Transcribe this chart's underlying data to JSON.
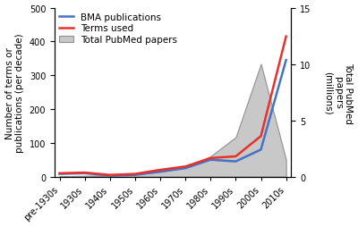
{
  "x_labels": [
    "pre-1930s",
    "1930s",
    "1940s",
    "1950s",
    "1960s",
    "1970s",
    "1980s",
    "1990s",
    "2000s",
    "2010s"
  ],
  "bma_publications": [
    8,
    10,
    3,
    5,
    15,
    25,
    50,
    45,
    80,
    345
  ],
  "terms_used": [
    10,
    12,
    5,
    8,
    20,
    30,
    55,
    60,
    120,
    415
  ],
  "total_pubmed_millions": [
    0.02,
    0.08,
    0.1,
    0.2,
    0.4,
    0.8,
    1.8,
    3.5,
    10.0,
    1.5
  ],
  "left_ylim": [
    0,
    500
  ],
  "right_ylim": [
    0,
    15
  ],
  "left_yticks": [
    0,
    100,
    200,
    300,
    400,
    500
  ],
  "right_yticks": [
    0,
    5,
    10,
    15
  ],
  "ylabel_left": "Number of terms or\npublications (per decade)",
  "ylabel_right": "Total PubMed\npapers\n(millions)",
  "legend_labels": [
    "BMA publications",
    "Terms used",
    "Total PubMed papers"
  ],
  "bma_color": "#4472c4",
  "terms_color": "#e8312a",
  "pubmed_fill_color": "#c8c8c8",
  "pubmed_edge_color": "#909090",
  "background_color": "#ffffff",
  "linewidth": 1.8,
  "legend_fontsize": 7.5,
  "axis_fontsize": 7.5,
  "tick_fontsize": 7
}
